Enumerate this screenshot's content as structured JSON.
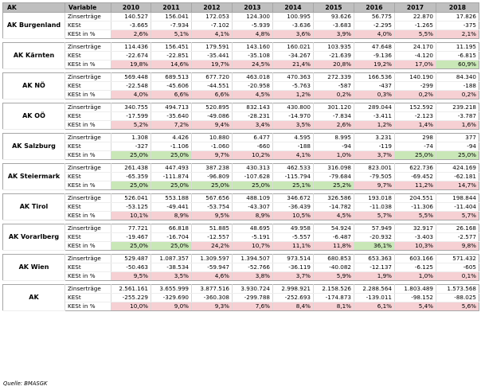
{
  "header": {
    "ak": "AK",
    "variable": "Variable",
    "years": [
      "2010",
      "2011",
      "2012",
      "2013",
      "2014",
      "2015",
      "2016",
      "2017",
      "2018"
    ]
  },
  "groups": [
    {
      "name": "AK Burgenland",
      "rows": [
        {
          "label": "Zinserträge",
          "values": [
            "140.527",
            "156.041",
            "172.053",
            "124.300",
            "100.995",
            "93.626",
            "56.775",
            "22.870",
            "17.826"
          ]
        },
        {
          "label": "KESt",
          "values": [
            "-3.665",
            "-7.934",
            "-7.102",
            "-5.939",
            "-3.636",
            "-3.683",
            "-2.295",
            "-1.265",
            "-375"
          ]
        },
        {
          "label": "KESt in %",
          "values": [
            "2,6%",
            "5,1%",
            "4,1%",
            "4,8%",
            "3,6%",
            "3,9%",
            "4,0%",
            "5,5%",
            "2,1%"
          ],
          "status": [
            "red",
            "red",
            "red",
            "red",
            "red",
            "red",
            "red",
            "red",
            "red"
          ]
        }
      ]
    },
    {
      "name": "AK Kärnten",
      "rows": [
        {
          "label": "Zinserträge",
          "values": [
            "114.436",
            "156.451",
            "179.591",
            "143.160",
            "160.021",
            "103.935",
            "47.648",
            "24.170",
            "11.195"
          ]
        },
        {
          "label": "KESt",
          "values": [
            "-22.674",
            "-22.851",
            "-35.441",
            "-35.108",
            "-34.267",
            "-21.639",
            "-9.136",
            "-4.120",
            "-6.815"
          ]
        },
        {
          "label": "KESt in %",
          "values": [
            "19,8%",
            "14,6%",
            "19,7%",
            "24,5%",
            "21,4%",
            "20,8%",
            "19,2%",
            "17,0%",
            "60,9%"
          ],
          "status": [
            "red",
            "red",
            "red",
            "red",
            "red",
            "red",
            "red",
            "red",
            "green"
          ]
        }
      ]
    },
    {
      "name": "AK NÖ",
      "rows": [
        {
          "label": "Zinserträge",
          "values": [
            "569.448",
            "689.513",
            "677.720",
            "463.018",
            "470.363",
            "272.339",
            "166.536",
            "140.190",
            "84.340"
          ]
        },
        {
          "label": "KESt",
          "values": [
            "-22.548",
            "-45.606",
            "-44.551",
            "-20.958",
            "-5.763",
            "-587",
            "-437",
            "-299",
            "-188"
          ]
        },
        {
          "label": "KESt in %",
          "values": [
            "4,0%",
            "6,6%",
            "6,6%",
            "4,5%",
            "1,2%",
            "0,2%",
            "0,3%",
            "0,2%",
            "0,2%"
          ],
          "status": [
            "red",
            "red",
            "red",
            "red",
            "red",
            "red",
            "red",
            "red",
            "red"
          ]
        }
      ]
    },
    {
      "name": "AK OÖ",
      "rows": [
        {
          "label": "Zinserträge",
          "values": [
            "340.755",
            "494.713",
            "520.895",
            "832.143",
            "430.800",
            "301.120",
            "289.044",
            "152.592",
            "239.218"
          ]
        },
        {
          "label": "KESt",
          "values": [
            "-17.599",
            "-35.640",
            "-49.086",
            "-28.231",
            "-14.970",
            "-7.834",
            "-3.411",
            "-2.123",
            "-3.787"
          ]
        },
        {
          "label": "KESt in %",
          "values": [
            "5,2%",
            "7,2%",
            "9,4%",
            "3,4%",
            "3,5%",
            "2,6%",
            "1,2%",
            "1,4%",
            "1,6%"
          ],
          "status": [
            "red",
            "red",
            "red",
            "red",
            "red",
            "red",
            "red",
            "red",
            "red"
          ]
        }
      ]
    },
    {
      "name": "AK Salzburg",
      "rows": [
        {
          "label": "Zinserträge",
          "values": [
            "1.308",
            "4.426",
            "10.880",
            "6.477",
            "4.595",
            "8.995",
            "3.231",
            "298",
            "377"
          ]
        },
        {
          "label": "KESt",
          "values": [
            "-327",
            "-1.106",
            "-1.060",
            "-660",
            "-188",
            "-94",
            "-119",
            "-74",
            "-94"
          ]
        },
        {
          "label": "KESt in %",
          "values": [
            "25,0%",
            "25,0%",
            "9,7%",
            "10,2%",
            "4,1%",
            "1,0%",
            "3,7%",
            "25,0%",
            "25,0%"
          ],
          "status": [
            "green",
            "green",
            "red",
            "red",
            "red",
            "red",
            "red",
            "green",
            "green"
          ]
        }
      ]
    },
    {
      "name": "AK Steiermark",
      "rows": [
        {
          "label": "Zinserträge",
          "values": [
            "261.438",
            "447.493",
            "387.238",
            "430.313",
            "462.533",
            "316.098",
            "823.001",
            "622.736",
            "424.169"
          ]
        },
        {
          "label": "KESt",
          "values": [
            "-65.359",
            "-111.874",
            "-96.809",
            "-107.628",
            "-115.794",
            "-79.684",
            "-79.505",
            "-69.452",
            "-62.181"
          ]
        },
        {
          "label": "KESt in %",
          "values": [
            "25,0%",
            "25,0%",
            "25,0%",
            "25,0%",
            "25,1%",
            "25,2%",
            "9,7%",
            "11,2%",
            "14,7%"
          ],
          "status": [
            "green",
            "green",
            "green",
            "green",
            "green",
            "green",
            "red",
            "red",
            "red"
          ]
        }
      ]
    },
    {
      "name": "AK Tirol",
      "rows": [
        {
          "label": "Zinserträge",
          "values": [
            "526.041",
            "553.188",
            "567.656",
            "488.109",
            "346.672",
            "326.586",
            "193.018",
            "204.551",
            "198.844"
          ]
        },
        {
          "label": "KESt",
          "values": [
            "-53.125",
            "-49.441",
            "-53.754",
            "-43.307",
            "-36.439",
            "-14.782",
            "-11.038",
            "-11.306",
            "-11.404"
          ]
        },
        {
          "label": "KESt in %",
          "values": [
            "10,1%",
            "8,9%",
            "9,5%",
            "8,9%",
            "10,5%",
            "4,5%",
            "5,7%",
            "5,5%",
            "5,7%"
          ],
          "status": [
            "red",
            "red",
            "red",
            "red",
            "red",
            "red",
            "red",
            "red",
            "red"
          ]
        }
      ]
    },
    {
      "name": "AK Vorarlberg",
      "rows": [
        {
          "label": "Zinserträge",
          "values": [
            "77.721",
            "66.818",
            "51.885",
            "48.695",
            "49.958",
            "54.924",
            "57.949",
            "32.917",
            "26.168"
          ]
        },
        {
          "label": "KESt",
          "values": [
            "-19.467",
            "-16.704",
            "-12.557",
            "-5.191",
            "-5.557",
            "-6.487",
            "-20.932",
            "-3.403",
            "-2.577"
          ]
        },
        {
          "label": "KESt in %",
          "values": [
            "25,0%",
            "25,0%",
            "24,2%",
            "10,7%",
            "11,1%",
            "11,8%",
            "36,1%",
            "10,3%",
            "9,8%"
          ],
          "status": [
            "green",
            "green",
            "red",
            "red",
            "red",
            "red",
            "green",
            "red",
            "red"
          ]
        }
      ]
    },
    {
      "name": "AK Wien",
      "rows": [
        {
          "label": "Zinserträge",
          "values": [
            "529.487",
            "1.087.357",
            "1.309.597",
            "1.394.507",
            "973.514",
            "680.853",
            "653.363",
            "603.166",
            "571.432"
          ]
        },
        {
          "label": "KESt",
          "values": [
            "-50.463",
            "-38.534",
            "-59.947",
            "-52.766",
            "-36.119",
            "-40.082",
            "-12.137",
            "-6.125",
            "-605"
          ]
        },
        {
          "label": "KESt in %",
          "values": [
            "9,5%",
            "3,5%",
            "4,6%",
            "3,8%",
            "3,7%",
            "5,9%",
            "1,9%",
            "1,0%",
            "0,1%"
          ],
          "status": [
            "red",
            "red",
            "red",
            "red",
            "red",
            "red",
            "red",
            "red",
            "red"
          ]
        }
      ]
    },
    {
      "name": "AK",
      "rows": [
        {
          "label": "Zinserträge",
          "values": [
            "2.561.161",
            "3.655.999",
            "3.877.516",
            "3.930.724",
            "2.998.921",
            "2.158.526",
            "2.288.564",
            "1.803.489",
            "1.573.568"
          ]
        },
        {
          "label": "KESt",
          "values": [
            "-255.229",
            "-329.690",
            "-360.308",
            "-299.788",
            "-252.693",
            "-174.873",
            "-139.011",
            "-98.152",
            "-88.025"
          ]
        },
        {
          "label": "KESt in %",
          "values": [
            "10,0%",
            "9,0%",
            "9,3%",
            "7,6%",
            "8,4%",
            "8,1%",
            "6,1%",
            "5,4%",
            "5,6%"
          ],
          "status": [
            "red",
            "red",
            "red",
            "red",
            "red",
            "red",
            "red",
            "red",
            "red"
          ]
        }
      ]
    }
  ],
  "source": "Quelle: BMASGK",
  "colors": {
    "red": "#f6d0d3",
    "green": "#c9e7b7",
    "header": "#bfbfbf"
  }
}
